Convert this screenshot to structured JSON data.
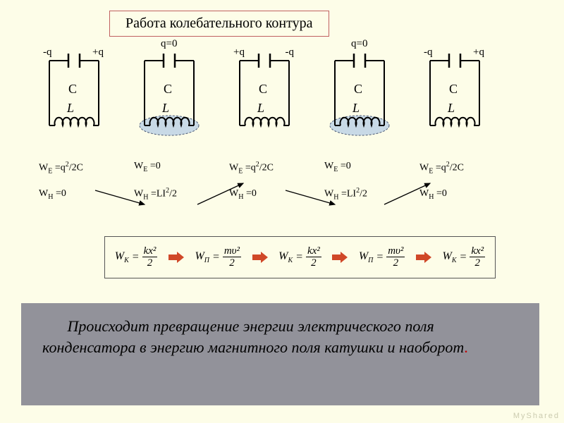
{
  "title": "Работа колебательного контура",
  "circuits": [
    {
      "left_q": "-q",
      "right_q": "+q",
      "center_q": "",
      "C": "C",
      "L": "L",
      "field": false
    },
    {
      "left_q": "",
      "right_q": "",
      "center_q": "q=0",
      "C": "C",
      "L": "L",
      "field": true
    },
    {
      "left_q": "+q",
      "right_q": "-q",
      "center_q": "",
      "C": "C",
      "L": "L",
      "field": false
    },
    {
      "left_q": "",
      "right_q": "",
      "center_q": "q=0",
      "C": "C",
      "L": "L",
      "field": true
    },
    {
      "left_q": "-q",
      "right_q": "+q",
      "center_q": "",
      "C": "C",
      "L": "L",
      "field": false
    }
  ],
  "eq_cols": [
    {
      "we": "W_E =q^2/2C",
      "wh": "W_H =0"
    },
    {
      "we": "W_E =0",
      "wh": "W_H =LI^2/2"
    },
    {
      "we": "W_E =q^2/2C",
      "wh": "W_H =0"
    },
    {
      "we": "W_E =0",
      "wh": "W_H =LI^2/2"
    },
    {
      "we": "W_E =q^2/2C",
      "wh": "W_H =0"
    }
  ],
  "energy_chain": [
    {
      "lhs": "W_K",
      "num": "kx²",
      "den": "2"
    },
    {
      "lhs": "W_П",
      "num": "mυ²",
      "den": "2"
    },
    {
      "lhs": "W_K",
      "num": "kx²",
      "den": "2"
    },
    {
      "lhs": "W_П",
      "num": "mυ²",
      "den": "2"
    },
    {
      "lhs": "W_K",
      "num": "kx²",
      "den": "2"
    }
  ],
  "panel_text": "Происходит превращение энергии электрического поля конденсатора в энергию магнитного поля катушки и наоборот",
  "panel_dot": ".",
  "watermark": "MyShared",
  "colors": {
    "bg": "#fdfde8",
    "title_border": "#c06060",
    "panel_bg": "#92929a",
    "arrow": "#d04828",
    "field_fill": "#c3d6e6",
    "field_stroke": "#3a4a6a"
  }
}
